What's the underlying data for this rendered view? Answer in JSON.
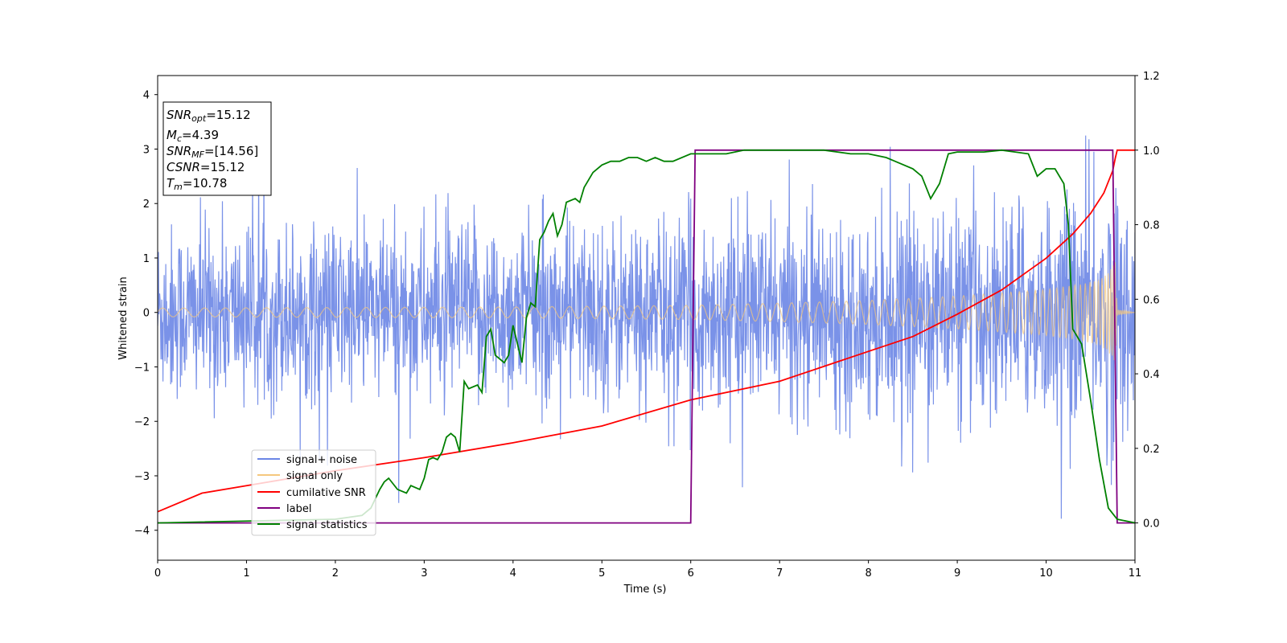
{
  "chart_data": {
    "type": "line",
    "xlabel": "Time (s)",
    "ylabel": "Whitened strain",
    "xlim": [
      0,
      11
    ],
    "ylim_left": [
      -4.55,
      4.35
    ],
    "ylim_right": [
      -0.1,
      1.2
    ],
    "x_ticks": [
      0,
      1,
      2,
      3,
      4,
      5,
      6,
      7,
      8,
      9,
      10,
      11
    ],
    "y_ticks_left": [
      -4,
      -3,
      -2,
      -1,
      0,
      1,
      2,
      3,
      4
    ],
    "y_ticks_right": [
      0.0,
      0.2,
      0.4,
      0.6,
      0.8,
      1.0,
      1.2
    ],
    "grid": false,
    "legend_position": "lower-left",
    "annotation": {
      "lines": [
        {
          "main": "SNR",
          "sub": "opt",
          "value": "=15.12"
        },
        {
          "main": "M",
          "sub": "c",
          "value": "=4.39"
        },
        {
          "main": "SNR",
          "sub": "MF",
          "value": "=[14.56]"
        },
        {
          "main": "CSNR",
          "sub": "",
          "value": "=15.12"
        },
        {
          "main": "T",
          "sub": "m",
          "value": "=10.78"
        }
      ]
    },
    "series": [
      {
        "name": "signal+ noise",
        "axis": "left",
        "color": "#6b86e6",
        "description": "whitened noisy strain, roughly within -2.5..2.5 with peaks to about 3.9 and -4.2",
        "noise_envelope": [
          [
            0,
            1.45
          ],
          [
            5,
            1.5
          ],
          [
            8,
            1.6
          ],
          [
            10,
            1.8
          ],
          [
            10.8,
            2.3
          ],
          [
            11,
            1.5
          ]
        ]
      },
      {
        "name": "signal only",
        "axis": "left",
        "color": "#f5c77e",
        "amplitude": [
          [
            0,
            0.08
          ],
          [
            2,
            0.09
          ],
          [
            4,
            0.1
          ],
          [
            6,
            0.13
          ],
          [
            7,
            0.17
          ],
          [
            8,
            0.22
          ],
          [
            9,
            0.3
          ],
          [
            10,
            0.42
          ],
          [
            10.4,
            0.52
          ],
          [
            10.6,
            0.6
          ],
          [
            10.7,
            0.72
          ],
          [
            10.75,
            0.85
          ],
          [
            10.78,
            0.95
          ],
          [
            10.8,
            0.05
          ],
          [
            11,
            0.0
          ]
        ]
      },
      {
        "name": "cumilative SNR",
        "axis": "right",
        "color": "#ff0000",
        "x": [
          0,
          0.5,
          1,
          2,
          3,
          4,
          5,
          6,
          7,
          8,
          8.5,
          9,
          9.5,
          10,
          10.3,
          10.5,
          10.65,
          10.75,
          10.78,
          10.8,
          11
        ],
        "y": [
          0.03,
          0.08,
          0.1,
          0.14,
          0.175,
          0.215,
          0.26,
          0.33,
          0.38,
          0.46,
          0.5,
          0.56,
          0.625,
          0.71,
          0.775,
          0.83,
          0.885,
          0.945,
          0.98,
          1.0,
          1.0
        ]
      },
      {
        "name": "label",
        "axis": "right",
        "color": "#800080",
        "x": [
          0,
          6.0,
          6.05,
          10.75,
          10.8,
          11
        ],
        "y": [
          0,
          0,
          1,
          1,
          0,
          0
        ]
      },
      {
        "name": "signal statistics",
        "axis": "right",
        "color": "#008000",
        "x": [
          0,
          2.0,
          2.3,
          2.4,
          2.5,
          2.55,
          2.6,
          2.7,
          2.8,
          2.85,
          2.95,
          3.0,
          3.05,
          3.1,
          3.15,
          3.2,
          3.25,
          3.3,
          3.35,
          3.4,
          3.45,
          3.5,
          3.6,
          3.65,
          3.7,
          3.75,
          3.8,
          3.9,
          3.95,
          4.0,
          4.1,
          4.15,
          4.2,
          4.25,
          4.3,
          4.35,
          4.4,
          4.45,
          4.5,
          4.55,
          4.6,
          4.7,
          4.75,
          4.8,
          4.9,
          5.0,
          5.1,
          5.2,
          5.3,
          5.4,
          5.5,
          5.6,
          5.7,
          5.8,
          6.0,
          6.2,
          6.4,
          6.6,
          6.8,
          7.0,
          7.5,
          7.8,
          8.0,
          8.2,
          8.3,
          8.5,
          8.6,
          8.7,
          8.8,
          8.9,
          9.0,
          9.3,
          9.5,
          9.8,
          9.9,
          10.0,
          10.1,
          10.2,
          10.25,
          10.3,
          10.4,
          10.5,
          10.6,
          10.7,
          10.8,
          10.9,
          11.0
        ],
        "y": [
          0.0,
          0.01,
          0.02,
          0.04,
          0.09,
          0.11,
          0.12,
          0.09,
          0.08,
          0.1,
          0.09,
          0.12,
          0.17,
          0.175,
          0.17,
          0.19,
          0.23,
          0.24,
          0.23,
          0.19,
          0.38,
          0.36,
          0.37,
          0.35,
          0.5,
          0.52,
          0.45,
          0.43,
          0.45,
          0.53,
          0.43,
          0.55,
          0.59,
          0.58,
          0.76,
          0.78,
          0.81,
          0.83,
          0.77,
          0.8,
          0.86,
          0.87,
          0.86,
          0.9,
          0.94,
          0.96,
          0.97,
          0.97,
          0.98,
          0.98,
          0.97,
          0.98,
          0.97,
          0.97,
          0.99,
          0.99,
          0.99,
          1.0,
          1.0,
          1.0,
          1.0,
          0.99,
          0.99,
          0.98,
          0.97,
          0.95,
          0.93,
          0.87,
          0.91,
          0.99,
          0.995,
          0.995,
          1.0,
          0.99,
          0.93,
          0.95,
          0.95,
          0.91,
          0.8,
          0.52,
          0.48,
          0.33,
          0.17,
          0.04,
          0.01,
          0.005,
          0.0
        ]
      }
    ]
  }
}
